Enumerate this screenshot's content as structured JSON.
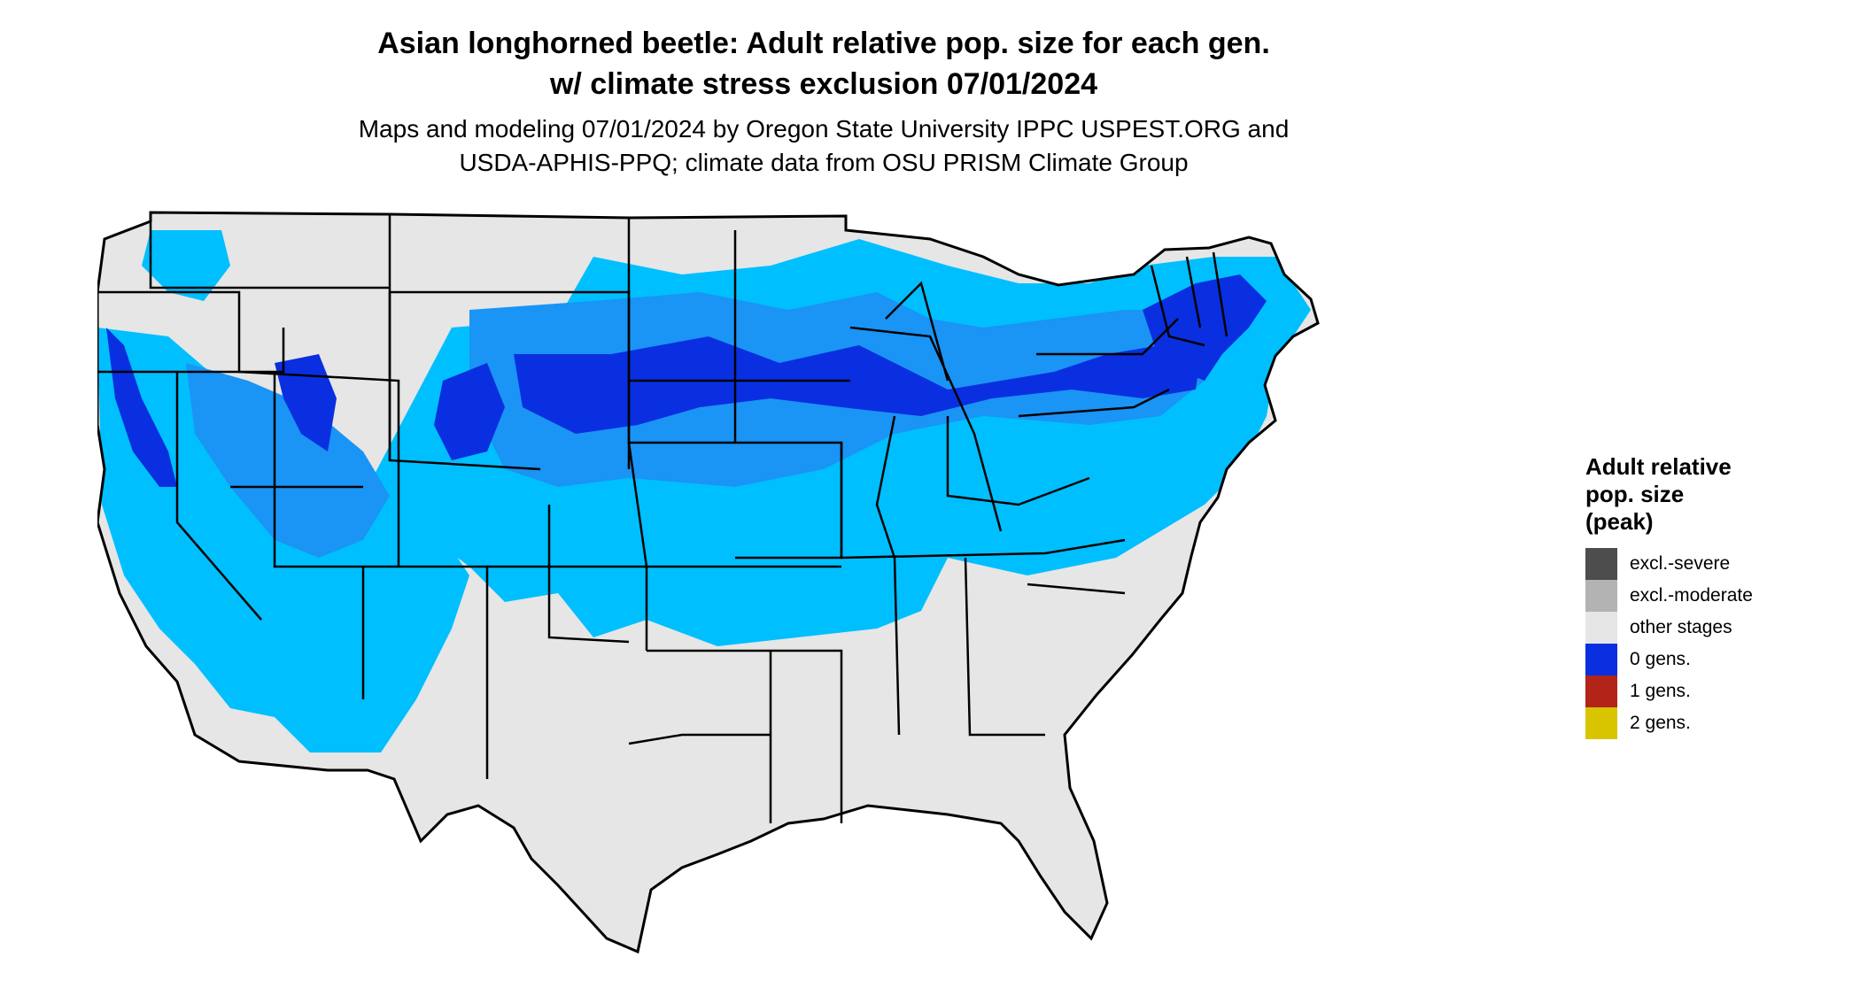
{
  "title": {
    "line1": "Asian longhorned beetle: Adult relative pop. size for each gen.",
    "line2": "w/ climate stress exclusion 07/01/2024"
  },
  "subtitle": {
    "line1": "Maps and modeling 07/01/2024 by Oregon State University IPPC USPEST.ORG and",
    "line2": "USDA-APHIS-PPQ; climate data from OSU PRISM Climate Group"
  },
  "legend": {
    "title_lines": [
      "Adult relative",
      "pop. size",
      "(peak)"
    ],
    "items": [
      {
        "label": "excl.-severe",
        "color": "#4d4d4d",
        "icon": "swatch-dark-gray"
      },
      {
        "label": "excl.-moderate",
        "color": "#b3b3b3",
        "icon": "swatch-light-gray"
      },
      {
        "label": "other stages",
        "color": "#e6e6e6",
        "icon": "swatch-pale-gray"
      },
      {
        "label": "0 gens.",
        "color": "#0a2fe0",
        "icon": "swatch-blue"
      },
      {
        "label": "1 gens.",
        "color": "#b22318",
        "icon": "swatch-red"
      },
      {
        "label": "2 gens.",
        "color": "#d9c400",
        "icon": "swatch-yellow"
      }
    ]
  },
  "map": {
    "region": "Contiguous United States",
    "colors": {
      "base": "#e6e6e6",
      "light_blue": "#00bfff",
      "mid_blue": "#1a94f5",
      "deep_blue": "#0a2fe0",
      "border": "#000000"
    }
  }
}
